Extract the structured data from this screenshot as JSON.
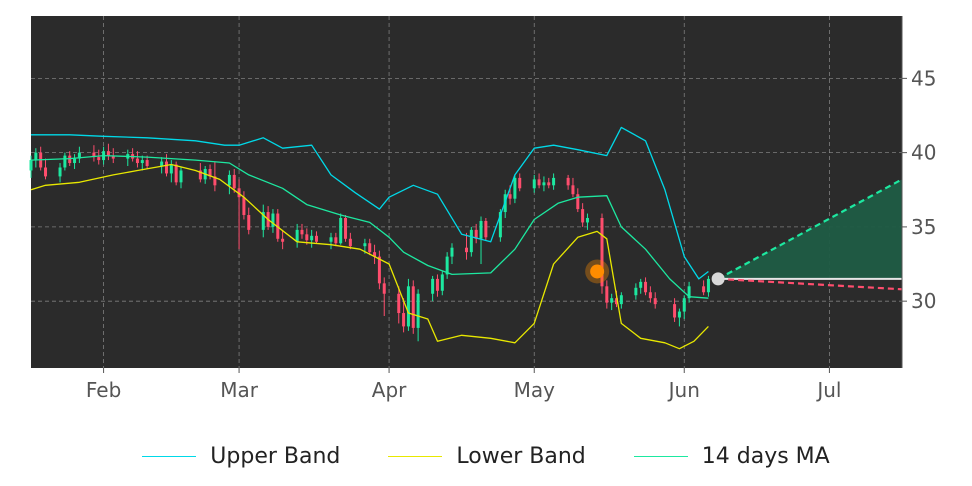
{
  "chart_data": {
    "type": "line",
    "title": "",
    "xlabel": "",
    "ylabel": "",
    "ylim": [
      25.5,
      49.2
    ],
    "xlim": [
      "2023-01-17",
      "2023-07-16"
    ],
    "y_ticks": [
      30,
      35,
      40,
      45
    ],
    "y_tick_labels": [
      "30",
      "35",
      "40",
      "45"
    ],
    "x_ticks": [
      "2023-02-01",
      "2023-03-01",
      "2023-04-01",
      "2023-05-01",
      "2023-06-01",
      "2023-07-01"
    ],
    "x_tick_labels": [
      "Feb",
      "Mar",
      "Apr",
      "May",
      "Jun",
      "Jul"
    ],
    "grid": true,
    "legend_position": "bottom",
    "background_color": "#2b2b2b",
    "colors": {
      "upper": "#00d9e8",
      "lower": "#e8e800",
      "ma": "#1de8a0",
      "candle_up": "#1de8a0",
      "candle_down": "#ff4d6d",
      "forecast_up": "#1de8a0",
      "forecast_down": "#ff4d6d",
      "forecast_fill": "#1f5c45",
      "marker": "#ff8c00",
      "endpoint": "#d9d9d9"
    },
    "series": [
      {
        "name": "Upper Band",
        "color": "#00d9e8",
        "points": [
          [
            "2023-01-17",
            41.2
          ],
          [
            "2023-01-25",
            41.2
          ],
          [
            "2023-02-01",
            41.1
          ],
          [
            "2023-02-10",
            41.0
          ],
          [
            "2023-02-20",
            40.8
          ],
          [
            "2023-02-26",
            40.5
          ],
          [
            "2023-03-01",
            40.5
          ],
          [
            "2023-03-06",
            41.0
          ],
          [
            "2023-03-10",
            40.3
          ],
          [
            "2023-03-16",
            40.5
          ],
          [
            "2023-03-20",
            38.5
          ],
          [
            "2023-03-25",
            37.3
          ],
          [
            "2023-03-30",
            36.2
          ],
          [
            "2023-04-01",
            37.0
          ],
          [
            "2023-04-06",
            37.8
          ],
          [
            "2023-04-11",
            37.2
          ],
          [
            "2023-04-16",
            34.5
          ],
          [
            "2023-04-22",
            34.0
          ],
          [
            "2023-04-27",
            38.5
          ],
          [
            "2023-05-01",
            40.3
          ],
          [
            "2023-05-05",
            40.5
          ],
          [
            "2023-05-10",
            40.2
          ],
          [
            "2023-05-16",
            39.8
          ],
          [
            "2023-05-19",
            41.7
          ],
          [
            "2023-05-24",
            40.8
          ],
          [
            "2023-05-28",
            37.5
          ],
          [
            "2023-06-01",
            33.0
          ],
          [
            "2023-06-04",
            31.5
          ],
          [
            "2023-06-06",
            32.0
          ]
        ]
      },
      {
        "name": "Lower Band",
        "color": "#e8e800",
        "points": [
          [
            "2023-01-17",
            37.5
          ],
          [
            "2023-01-20",
            37.8
          ],
          [
            "2023-01-27",
            38.0
          ],
          [
            "2023-02-03",
            38.5
          ],
          [
            "2023-02-08",
            38.8
          ],
          [
            "2023-02-15",
            39.2
          ],
          [
            "2023-02-20",
            38.8
          ],
          [
            "2023-02-25",
            38.2
          ],
          [
            "2023-03-02",
            37.0
          ],
          [
            "2023-03-07",
            35.5
          ],
          [
            "2023-03-13",
            34.0
          ],
          [
            "2023-03-20",
            33.8
          ],
          [
            "2023-03-26",
            33.5
          ],
          [
            "2023-04-01",
            32.5
          ],
          [
            "2023-04-05",
            29.2
          ],
          [
            "2023-04-09",
            28.8
          ],
          [
            "2023-04-11",
            27.3
          ],
          [
            "2023-04-16",
            27.7
          ],
          [
            "2023-04-22",
            27.5
          ],
          [
            "2023-04-27",
            27.2
          ],
          [
            "2023-05-01",
            28.5
          ],
          [
            "2023-05-05",
            32.5
          ],
          [
            "2023-05-10",
            34.3
          ],
          [
            "2023-05-14",
            34.7
          ],
          [
            "2023-05-16",
            34.2
          ],
          [
            "2023-05-19",
            28.5
          ],
          [
            "2023-05-23",
            27.5
          ],
          [
            "2023-05-28",
            27.2
          ],
          [
            "2023-05-31",
            26.8
          ],
          [
            "2023-06-03",
            27.3
          ],
          [
            "2023-06-06",
            28.3
          ]
        ]
      },
      {
        "name": "14 days MA",
        "color": "#1de8a0",
        "points": [
          [
            "2023-01-17",
            39.5
          ],
          [
            "2023-01-25",
            39.6
          ],
          [
            "2023-02-01",
            39.8
          ],
          [
            "2023-02-10",
            39.7
          ],
          [
            "2023-02-20",
            39.5
          ],
          [
            "2023-02-27",
            39.3
          ],
          [
            "2023-03-03",
            38.5
          ],
          [
            "2023-03-10",
            37.6
          ],
          [
            "2023-03-15",
            36.5
          ],
          [
            "2023-03-22",
            35.8
          ],
          [
            "2023-03-28",
            35.3
          ],
          [
            "2023-04-01",
            34.3
          ],
          [
            "2023-04-04",
            33.3
          ],
          [
            "2023-04-09",
            32.4
          ],
          [
            "2023-04-14",
            31.8
          ],
          [
            "2023-04-22",
            31.9
          ],
          [
            "2023-04-27",
            33.5
          ],
          [
            "2023-05-01",
            35.5
          ],
          [
            "2023-05-06",
            36.6
          ],
          [
            "2023-05-10",
            37.0
          ],
          [
            "2023-05-16",
            37.1
          ],
          [
            "2023-05-19",
            35.0
          ],
          [
            "2023-05-24",
            33.5
          ],
          [
            "2023-05-29",
            31.5
          ],
          [
            "2023-06-02",
            30.3
          ],
          [
            "2023-06-06",
            30.2
          ]
        ]
      }
    ],
    "candles": [
      [
        "2023-01-17",
        38.8,
        39.8,
        38.3,
        39.5
      ],
      [
        "2023-01-18",
        39.5,
        40.3,
        39.0,
        40.0
      ],
      [
        "2023-01-19",
        40.0,
        40.4,
        38.8,
        39.0
      ],
      [
        "2023-01-20",
        39.0,
        39.6,
        38.2,
        38.4
      ],
      [
        "2023-01-23",
        38.4,
        39.3,
        38.0,
        39.0
      ],
      [
        "2023-01-24",
        39.0,
        40.0,
        38.8,
        39.8
      ],
      [
        "2023-01-25",
        39.8,
        40.1,
        39.1,
        39.3
      ],
      [
        "2023-01-26",
        39.3,
        39.9,
        38.9,
        39.6
      ],
      [
        "2023-01-27",
        39.6,
        40.4,
        39.3,
        40.0
      ],
      [
        "2023-01-30",
        40.0,
        40.5,
        39.4,
        39.7
      ],
      [
        "2023-01-31",
        39.7,
        40.2,
        39.2,
        39.5
      ],
      [
        "2023-02-01",
        39.5,
        40.4,
        39.2,
        40.1
      ],
      [
        "2023-02-02",
        40.1,
        40.6,
        39.5,
        39.8
      ],
      [
        "2023-02-03",
        39.8,
        40.3,
        39.3,
        39.6
      ],
      [
        "2023-02-06",
        39.6,
        40.2,
        39.1,
        39.9
      ],
      [
        "2023-02-07",
        39.9,
        40.3,
        39.4,
        39.6
      ],
      [
        "2023-02-08",
        39.6,
        40.1,
        39.0,
        39.3
      ],
      [
        "2023-02-09",
        39.3,
        39.8,
        38.8,
        39.5
      ],
      [
        "2023-02-10",
        39.5,
        39.8,
        38.9,
        39.1
      ],
      [
        "2023-02-13",
        39.1,
        39.7,
        38.6,
        39.4
      ],
      [
        "2023-02-14",
        39.4,
        39.9,
        38.4,
        38.6
      ],
      [
        "2023-02-15",
        38.6,
        39.5,
        38.0,
        39.2
      ],
      [
        "2023-02-16",
        39.2,
        39.4,
        37.8,
        38.0
      ],
      [
        "2023-02-17",
        38.0,
        39.0,
        37.6,
        38.8
      ],
      [
        "2023-02-21",
        38.8,
        39.3,
        38.0,
        38.2
      ],
      [
        "2023-02-22",
        38.2,
        39.1,
        37.9,
        38.9
      ],
      [
        "2023-02-23",
        38.9,
        39.2,
        38.2,
        38.4
      ],
      [
        "2023-02-24",
        38.4,
        39.4,
        37.4,
        37.8
      ],
      [
        "2023-02-27",
        37.8,
        38.8,
        37.2,
        38.5
      ],
      [
        "2023-02-28",
        38.5,
        38.9,
        37.3,
        37.6
      ],
      [
        "2023-03-01",
        37.6,
        38.2,
        33.5,
        37.0
      ],
      [
        "2023-03-02",
        37.0,
        37.4,
        35.5,
        35.8
      ],
      [
        "2023-03-03",
        35.8,
        36.3,
        34.5,
        34.8
      ],
      [
        "2023-03-06",
        34.8,
        36.5,
        34.3,
        36.0
      ],
      [
        "2023-03-07",
        36.0,
        36.4,
        34.8,
        35.0
      ],
      [
        "2023-03-08",
        35.0,
        36.2,
        34.6,
        35.9
      ],
      [
        "2023-03-09",
        35.9,
        36.2,
        34.0,
        34.2
      ],
      [
        "2023-03-10",
        34.2,
        34.8,
        33.5,
        34.0
      ],
      [
        "2023-03-13",
        34.0,
        35.2,
        33.6,
        34.8
      ],
      [
        "2023-03-14",
        34.8,
        35.2,
        34.2,
        34.5
      ],
      [
        "2023-03-15",
        34.5,
        34.9,
        33.8,
        34.1
      ],
      [
        "2023-03-16",
        34.1,
        34.8,
        33.6,
        34.4
      ],
      [
        "2023-03-17",
        34.4,
        34.7,
        33.9,
        34.0
      ],
      [
        "2023-03-20",
        34.0,
        34.6,
        33.5,
        34.3
      ],
      [
        "2023-03-21",
        34.3,
        34.6,
        33.7,
        33.9
      ],
      [
        "2023-03-22",
        33.9,
        35.9,
        33.8,
        35.6
      ],
      [
        "2023-03-23",
        35.6,
        35.8,
        34.0,
        34.2
      ],
      [
        "2023-03-24",
        34.2,
        34.6,
        33.5,
        33.7
      ],
      [
        "2023-03-27",
        33.7,
        34.2,
        33.2,
        33.9
      ],
      [
        "2023-03-28",
        33.9,
        34.2,
        33.1,
        33.3
      ],
      [
        "2023-03-29",
        33.3,
        33.8,
        32.5,
        33.0
      ],
      [
        "2023-03-30",
        33.0,
        33.4,
        30.8,
        31.2
      ],
      [
        "2023-03-31",
        31.2,
        31.6,
        29.0,
        30.5
      ],
      [
        "2023-04-03",
        30.5,
        31.0,
        28.5,
        29.2
      ],
      [
        "2023-04-04",
        29.2,
        30.2,
        27.9,
        28.3
      ],
      [
        "2023-04-05",
        28.3,
        31.5,
        28.0,
        31.0
      ],
      [
        "2023-04-06",
        31.0,
        31.4,
        27.8,
        28.2
      ],
      [
        "2023-04-07",
        28.2,
        30.8,
        27.3,
        30.5
      ],
      [
        "2023-04-10",
        30.5,
        31.7,
        30.0,
        31.5
      ],
      [
        "2023-04-11",
        31.5,
        31.8,
        30.3,
        30.7
      ],
      [
        "2023-04-12",
        30.7,
        32.0,
        30.4,
        31.8
      ],
      [
        "2023-04-13",
        31.8,
        33.3,
        31.5,
        33.0
      ],
      [
        "2023-04-14",
        33.0,
        33.9,
        32.5,
        33.6
      ],
      [
        "2023-04-17",
        33.6,
        34.6,
        32.8,
        33.3
      ],
      [
        "2023-04-18",
        33.3,
        35.0,
        33.0,
        34.8
      ],
      [
        "2023-04-19",
        34.8,
        35.2,
        33.9,
        34.2
      ],
      [
        "2023-04-20",
        34.2,
        35.7,
        32.5,
        35.4
      ],
      [
        "2023-04-21",
        35.4,
        35.6,
        34.1,
        34.3
      ],
      [
        "2023-04-24",
        34.3,
        36.2,
        34.0,
        36.0
      ],
      [
        "2023-04-25",
        36.0,
        37.5,
        35.6,
        37.2
      ],
      [
        "2023-04-26",
        37.2,
        37.8,
        36.5,
        36.9
      ],
      [
        "2023-04-27",
        36.9,
        38.5,
        36.6,
        38.3
      ],
      [
        "2023-04-28",
        38.3,
        38.6,
        37.4,
        37.6
      ],
      [
        "2023-05-01",
        37.6,
        38.5,
        37.3,
        38.2
      ],
      [
        "2023-05-02",
        38.2,
        38.6,
        37.6,
        37.8
      ],
      [
        "2023-05-03",
        37.8,
        38.4,
        37.4,
        38.0
      ],
      [
        "2023-05-04",
        38.0,
        38.3,
        37.6,
        37.8
      ],
      [
        "2023-05-05",
        37.8,
        38.6,
        37.5,
        38.3
      ],
      [
        "2023-05-08",
        38.3,
        38.5,
        37.5,
        37.8
      ],
      [
        "2023-05-09",
        37.8,
        38.3,
        37.0,
        37.2
      ],
      [
        "2023-05-10",
        37.2,
        37.6,
        36.0,
        36.2
      ],
      [
        "2023-05-11",
        36.2,
        36.6,
        35.0,
        35.3
      ],
      [
        "2023-05-12",
        35.3,
        35.9,
        34.8,
        35.6
      ],
      [
        "2023-05-15",
        35.6,
        35.9,
        30.5,
        31.0
      ],
      [
        "2023-05-16",
        31.0,
        31.4,
        29.5,
        29.9
      ],
      [
        "2023-05-17",
        29.9,
        30.5,
        29.4,
        30.2
      ],
      [
        "2023-05-18",
        30.2,
        30.7,
        29.6,
        29.8
      ],
      [
        "2023-05-19",
        29.8,
        30.6,
        29.5,
        30.4
      ],
      [
        "2023-05-22",
        30.4,
        31.2,
        30.1,
        30.9
      ],
      [
        "2023-05-23",
        30.9,
        31.5,
        30.5,
        31.3
      ],
      [
        "2023-05-24",
        31.3,
        31.6,
        30.4,
        30.6
      ],
      [
        "2023-05-25",
        30.6,
        31.0,
        29.9,
        30.2
      ],
      [
        "2023-05-26",
        30.2,
        30.6,
        29.5,
        29.8
      ],
      [
        "2023-05-30",
        29.8,
        30.2,
        28.6,
        28.9
      ],
      [
        "2023-05-31",
        28.9,
        29.5,
        28.3,
        29.3
      ],
      [
        "2023-06-01",
        29.3,
        30.4,
        28.8,
        30.2
      ],
      [
        "2023-06-02",
        30.2,
        31.3,
        29.9,
        31.0
      ],
      [
        "2023-06-05",
        31.0,
        31.4,
        30.4,
        30.6
      ],
      [
        "2023-06-06",
        30.6,
        31.7,
        30.3,
        31.5
      ]
    ],
    "marker": {
      "date": "2023-05-14",
      "value": 32.0
    },
    "forecast": {
      "start": {
        "date": "2023-06-08",
        "value": 31.5
      },
      "end_date": "2023-07-16",
      "upper_end": 38.2,
      "lower_end": 30.8,
      "mid_end": 31.5
    }
  },
  "legend": {
    "upper_label": "Upper Band",
    "lower_label": "Lower Band",
    "ma_label": "14 days MA"
  }
}
